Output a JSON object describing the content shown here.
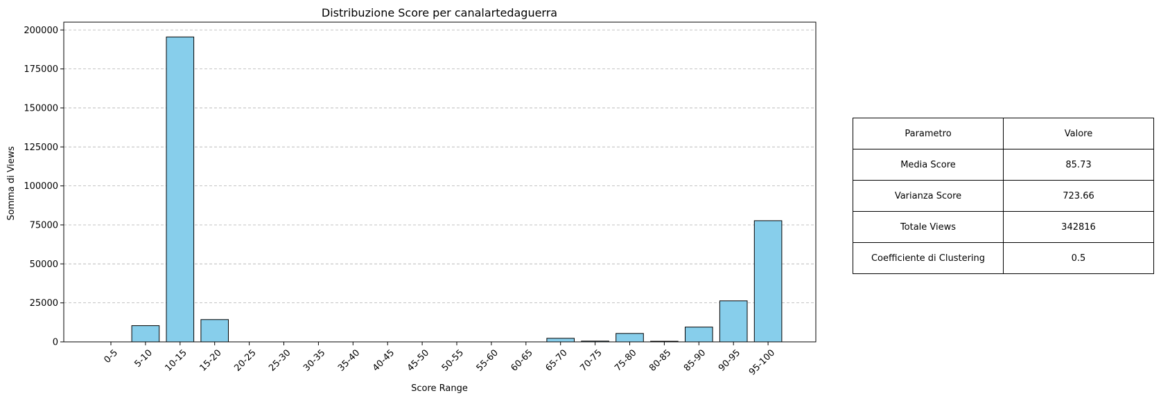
{
  "chart_data": {
    "type": "bar",
    "title": "Distribuzione Score per canalartedaguerra",
    "xlabel": "Score Range",
    "ylabel": "Somma di Views",
    "categories": [
      "0-5",
      "5-10",
      "10-15",
      "15-20",
      "20-25",
      "25-30",
      "30-35",
      "35-40",
      "40-45",
      "45-50",
      "50-55",
      "55-60",
      "60-65",
      "65-70",
      "70-75",
      "75-80",
      "80-85",
      "85-90",
      "90-95",
      "95-100"
    ],
    "values": [
      0,
      10400,
      195500,
      14300,
      0,
      0,
      0,
      0,
      0,
      0,
      0,
      0,
      0,
      2300,
      500,
      5400,
      400,
      9500,
      26300,
      77700
    ],
    "ylim": [
      0,
      205000
    ],
    "yticks": [
      0,
      25000,
      50000,
      75000,
      100000,
      125000,
      150000,
      175000,
      200000
    ],
    "grid": "y dashed",
    "bar_color": "#87ceeb",
    "edge_color": "#000000"
  },
  "table": {
    "header": [
      "Parametro",
      "Valore"
    ],
    "rows": [
      [
        "Media Score",
        "85.73"
      ],
      [
        "Varianza Score",
        "723.66"
      ],
      [
        "Totale Views",
        "342816"
      ],
      [
        "Coefficiente di Clustering",
        "0.5"
      ]
    ]
  }
}
